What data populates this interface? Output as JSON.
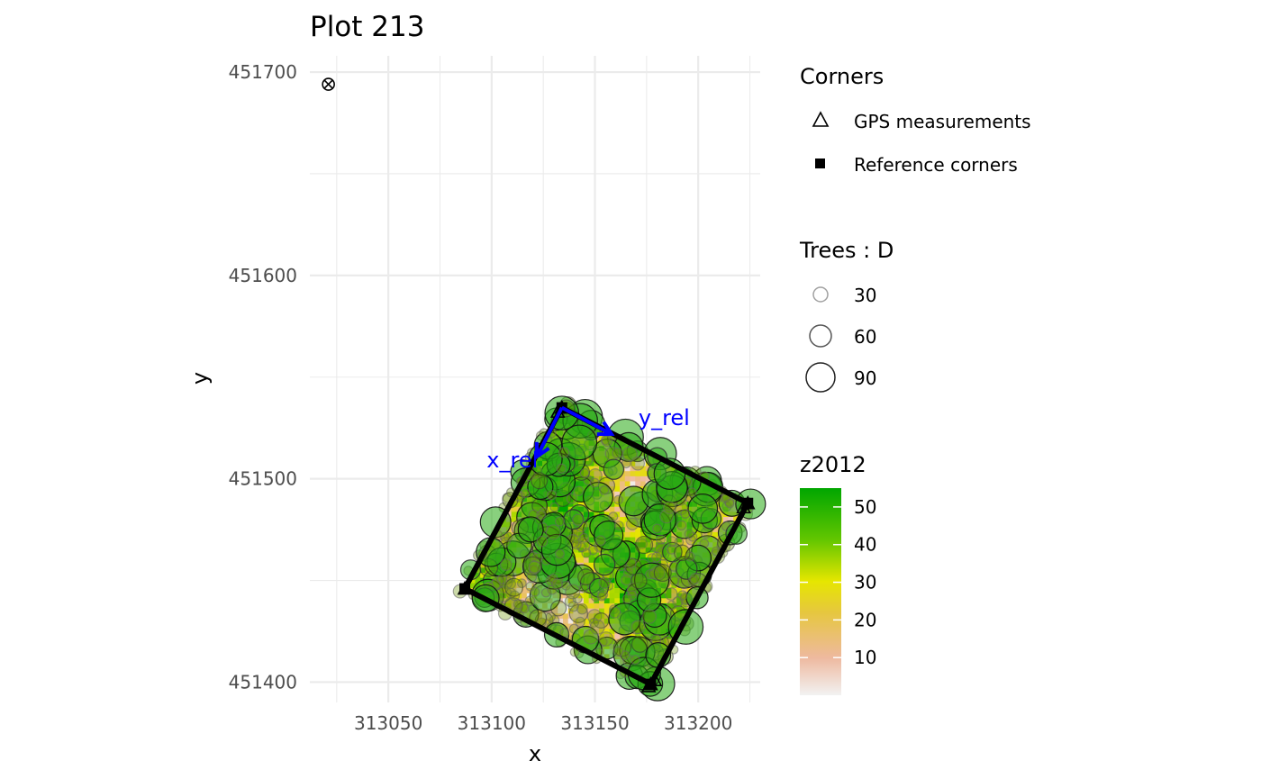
{
  "chart_data": {
    "type": "scatter",
    "title": "Plot 213",
    "xlabel": "x",
    "ylabel": "y",
    "xlim": [
      313012,
      313230
    ],
    "ylim": [
      451390,
      451708
    ],
    "x_ticks": [
      313050,
      313100,
      313150,
      313200
    ],
    "y_ticks": [
      451400,
      451500,
      451600,
      451700
    ],
    "grid": true,
    "legend_position": "right",
    "corners": {
      "gps_measurements": [
        {
          "x": 313087,
          "y": 451446
        },
        {
          "x": 313134,
          "y": 451535
        },
        {
          "x": 313224,
          "y": 451488
        },
        {
          "x": 313177,
          "y": 451399
        },
        {
          "x": 313179,
          "y": 451401
        },
        {
          "x": 313176,
          "y": 451398
        },
        {
          "x": 313222,
          "y": 451486
        },
        {
          "x": 313132,
          "y": 451533
        }
      ],
      "reference_corners": [
        {
          "x": 313087,
          "y": 451446
        },
        {
          "x": 313134,
          "y": 451535
        },
        {
          "x": 313224,
          "y": 451488
        },
        {
          "x": 313177,
          "y": 451399
        }
      ],
      "outlier": {
        "x": 313021,
        "y": 451694
      }
    },
    "axis_arrows": [
      {
        "label": "x_rel",
        "from": {
          "x": 313134,
          "y": 451535
        },
        "to": {
          "x": 313122,
          "y": 451511
        }
      },
      {
        "label": "y_rel",
        "from": {
          "x": 313134,
          "y": 451535
        },
        "to": {
          "x": 313158,
          "y": 451522
        }
      }
    ],
    "legends": {
      "corners": {
        "title": "Corners",
        "entries": [
          "GPS measurements",
          "Reference corners"
        ]
      },
      "trees": {
        "title": "Trees : D",
        "sizes": [
          30,
          60,
          90
        ]
      },
      "raster": {
        "title": "z2012",
        "ticks": [
          10,
          20,
          30,
          40,
          50
        ],
        "range": [
          0,
          55
        ],
        "colors": [
          "#f2f2f2",
          "#eeb99f",
          "#e6c73f",
          "#e6e600",
          "#63c600",
          "#00a600"
        ]
      }
    },
    "trees_summary": {
      "count_shown": 520,
      "diameter_range": [
        10,
        95
      ]
    }
  }
}
